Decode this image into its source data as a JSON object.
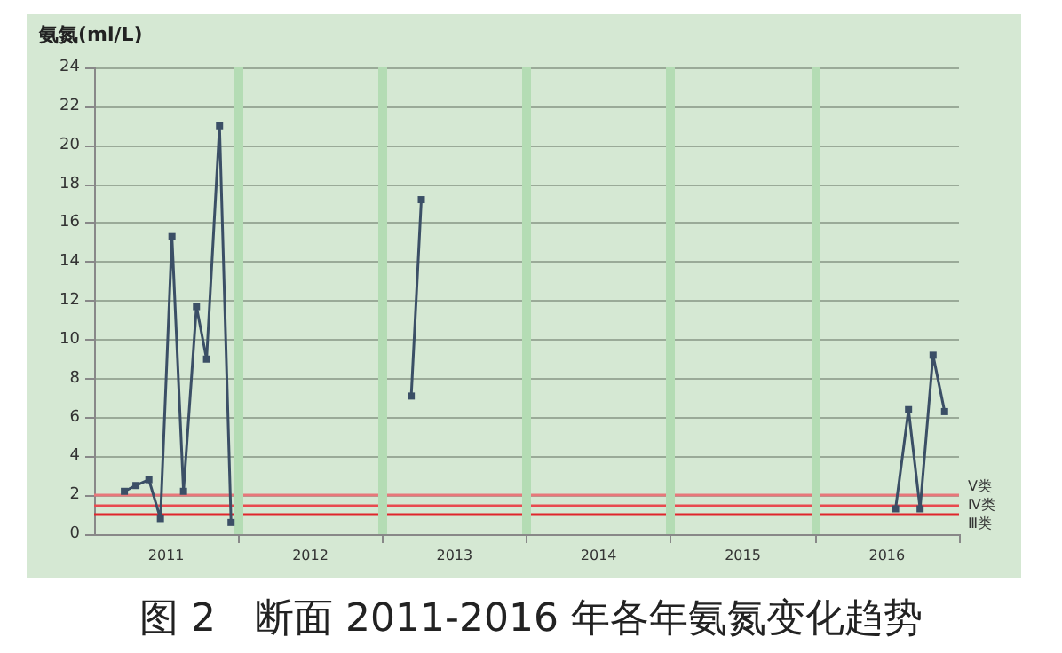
{
  "chart_data": {
    "type": "line",
    "title": "图 2　断面 2011-2016 年各年氨氮变化趋势",
    "ylabel": "氨氮(ml/L)",
    "x": [
      2011.21,
      2011.29,
      2011.38,
      2011.46,
      2011.54,
      2011.62,
      2011.71,
      2011.78,
      2011.87,
      2011.95,
      2012.5,
      2013.2,
      2013.27,
      2015,
      2016.56,
      2016.65,
      2016.73,
      2016.82,
      2016.9
    ],
    "series": [
      {
        "color": "#3b4f66",
        "values": [
          2.2,
          2.5,
          2.8,
          0.8,
          15.3,
          2.2,
          11.7,
          9.0,
          21.0,
          0.6,
          null,
          7.1,
          17.2,
          null,
          1.3,
          6.4,
          1.3,
          9.2,
          6.3
        ]
      }
    ],
    "xlim": [
      2011,
      2017
    ],
    "xticks": [
      {
        "value": 2011.5,
        "label": "2011"
      },
      {
        "value": 2012,
        "label": null
      },
      {
        "value": 2012.5,
        "label": "2012"
      },
      {
        "value": 2013,
        "label": null
      },
      {
        "value": 2013.5,
        "label": "2013"
      },
      {
        "value": 2014,
        "label": null
      },
      {
        "value": 2014.5,
        "label": "2014"
      },
      {
        "value": 2015,
        "label": null
      },
      {
        "value": 2015.5,
        "label": "2015"
      },
      {
        "value": 2016,
        "label": null
      },
      {
        "value": 2016.5,
        "label": "2016"
      },
      {
        "value": 2017,
        "label": null
      }
    ],
    "ylim": [
      0,
      24
    ],
    "yticks": [
      0,
      2,
      4,
      6,
      8,
      10,
      12,
      14,
      16,
      18,
      20,
      22,
      24
    ],
    "grid": "y",
    "marker": "square",
    "line_style": "solid",
    "ref_lines": [
      {
        "axis": "y",
        "value": 2,
        "label": "Ⅴ类",
        "color": "#e8777a"
      },
      {
        "axis": "y",
        "value": 1.5,
        "label": "Ⅳ类",
        "color": "#e84a4f"
      },
      {
        "axis": "y",
        "value": 1,
        "label": "Ⅲ类",
        "color": "#e0252b"
      },
      {
        "axis": "x",
        "value": 2012,
        "label": null,
        "color": "#b4dcb4"
      },
      {
        "axis": "x",
        "value": 2013,
        "label": null,
        "color": "#b4dcb4"
      },
      {
        "axis": "x",
        "value": 2014,
        "label": null,
        "color": "#b4dcb4"
      },
      {
        "axis": "x",
        "value": 2015,
        "label": null,
        "color": "#b4dcb4"
      },
      {
        "axis": "x",
        "value": 2016,
        "label": null,
        "color": "#b4dcb4"
      }
    ]
  }
}
